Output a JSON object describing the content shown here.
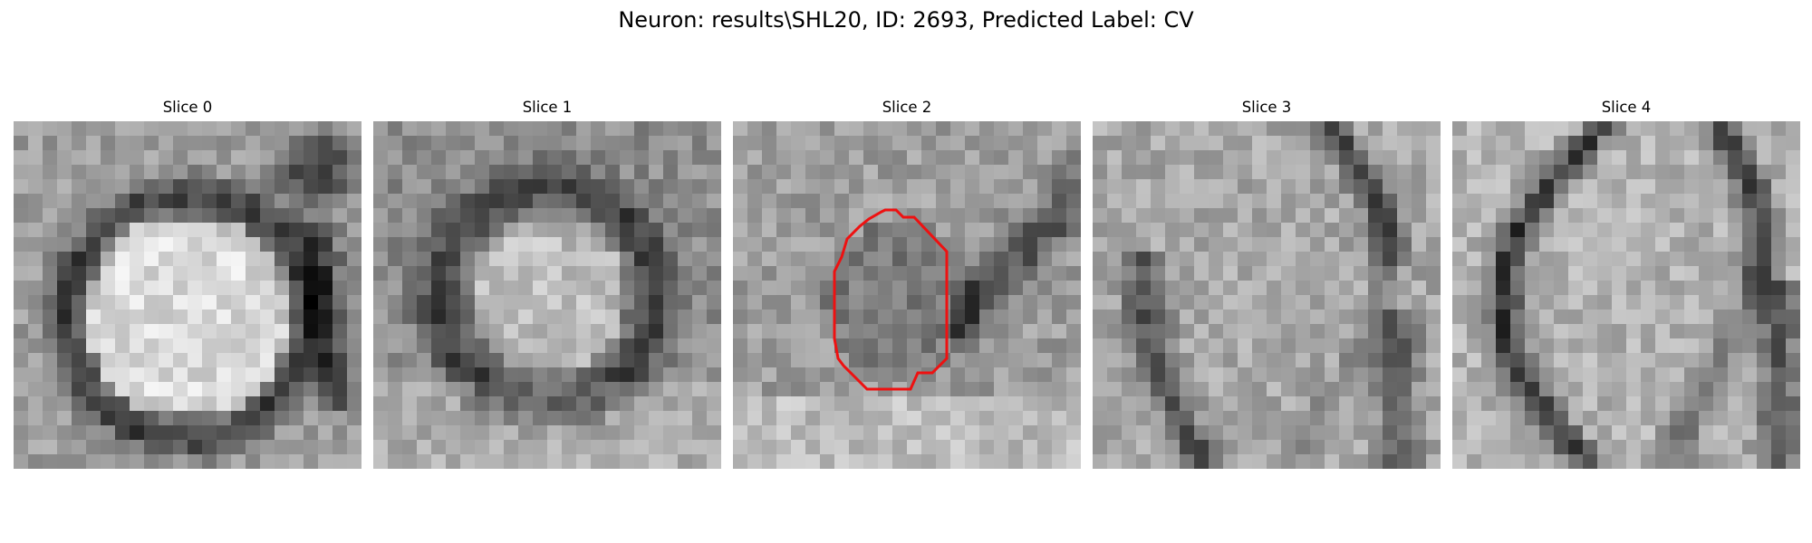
{
  "figure": {
    "title": "Neuron: results\\SHL20, ID: 2693, Predicted Label: CV"
  },
  "panels": [
    {
      "title": "Slice 0",
      "pattern": "bright-disc",
      "has_contour": false
    },
    {
      "title": "Slice 1",
      "pattern": "dim-disc",
      "has_contour": false
    },
    {
      "title": "Slice 2",
      "pattern": "noisy-center",
      "has_contour": true
    },
    {
      "title": "Slice 3",
      "pattern": "curved-membrane",
      "has_contour": false
    },
    {
      "title": "Slice 4",
      "pattern": "membrane-arcs",
      "has_contour": false
    }
  ],
  "colors": {
    "contour": "#ee1111",
    "background": "#ffffff",
    "colormap": "gray"
  }
}
